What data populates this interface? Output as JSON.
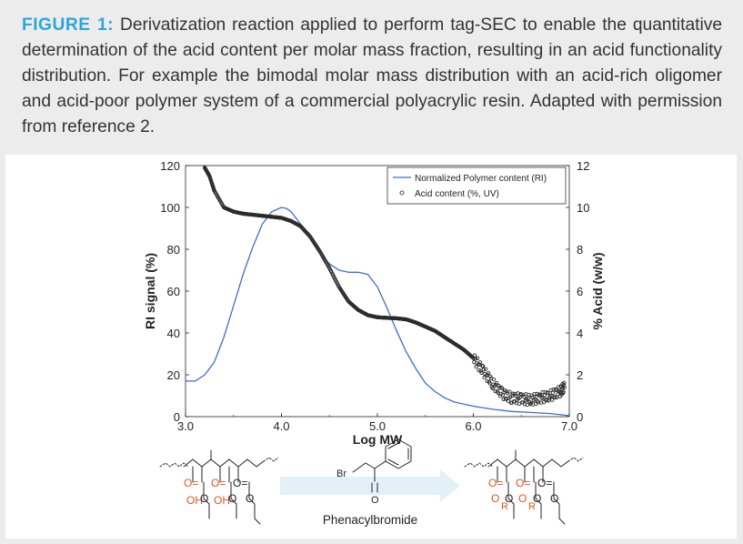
{
  "caption": {
    "label": "FIGURE 1:",
    "text": "Derivatization reaction applied to perform tag-SEC to enable the quantitative determination of the acid content per molar mass fraction, resulting in an acid functionality distribution. For example the bimodal molar mass distribution with an acid-rich oligomer and acid-poor polymer system of a commercial polyacrylic resin. Adapted with permission from reference 2."
  },
  "chart_data": {
    "type": "line",
    "xlabel": "Log MW",
    "ylabel": "RI signal (%)",
    "y2label": "% Acid (w/w)",
    "xlim": [
      3.0,
      7.0
    ],
    "ylim": [
      0,
      120
    ],
    "y2lim": [
      0,
      12
    ],
    "x_ticks": [
      "3.0",
      "4.0",
      "5.0",
      "6.0",
      "7.0"
    ],
    "y_ticks": [
      "0",
      "20",
      "40",
      "60",
      "80",
      "100",
      "120"
    ],
    "y2_ticks": [
      "0",
      "2",
      "4",
      "6",
      "8",
      "10",
      "12"
    ],
    "legend": [
      "Normalized Polymer content (RI)",
      "Acid content (%, UV)"
    ],
    "legend_position": "top-right",
    "series": [
      {
        "name": "Normalized Polymer content (RI)",
        "axis": "left",
        "style": "line",
        "color": "#3d6dc9",
        "x": [
          3.0,
          3.1,
          3.2,
          3.3,
          3.4,
          3.5,
          3.6,
          3.7,
          3.8,
          3.9,
          4.0,
          4.05,
          4.1,
          4.2,
          4.3,
          4.4,
          4.5,
          4.6,
          4.7,
          4.8,
          4.9,
          5.0,
          5.1,
          5.2,
          5.3,
          5.4,
          5.5,
          5.6,
          5.7,
          5.8,
          5.9,
          6.0,
          6.2,
          6.4,
          6.6,
          6.8,
          7.0
        ],
        "y": [
          17,
          17,
          20,
          26,
          38,
          53,
          68,
          81,
          92,
          98,
          100,
          99.5,
          98,
          92,
          85,
          78,
          73,
          70,
          69,
          69,
          68,
          62,
          52,
          41,
          31,
          23,
          16,
          12,
          9,
          7,
          6,
          5,
          3.5,
          2.5,
          2,
          1.5,
          0.5
        ]
      },
      {
        "name": "Acid content (%, UV)",
        "axis": "right",
        "style": "markers",
        "color": "#2b2b2b",
        "x": [
          3.2,
          3.25,
          3.3,
          3.4,
          3.5,
          3.6,
          3.7,
          3.8,
          3.9,
          4.0,
          4.1,
          4.2,
          4.3,
          4.4,
          4.5,
          4.6,
          4.7,
          4.8,
          4.9,
          5.0,
          5.1,
          5.2,
          5.3,
          5.4,
          5.5,
          5.6,
          5.7,
          5.8,
          5.9,
          6.0,
          6.1,
          6.2,
          6.3,
          6.4,
          6.5,
          6.6,
          6.7,
          6.8,
          6.9,
          6.95
        ],
        "y": [
          11.9,
          11.5,
          10.8,
          10.0,
          9.8,
          9.7,
          9.65,
          9.6,
          9.55,
          9.5,
          9.35,
          9.1,
          8.6,
          7.9,
          7.1,
          6.2,
          5.5,
          5.1,
          4.85,
          4.75,
          4.72,
          4.7,
          4.65,
          4.5,
          4.3,
          4.1,
          3.8,
          3.5,
          3.2,
          2.8,
          2.2,
          1.6,
          1.1,
          0.9,
          0.85,
          0.8,
          0.9,
          1.0,
          1.2,
          1.4
        ]
      }
    ]
  },
  "scheme": {
    "left_labels": [
      "OH",
      "OH"
    ],
    "reagent_atom": "Br",
    "carbonyl_o": "O",
    "reagent_name": "Phenacylbromide",
    "r_labels": [
      "R",
      "R"
    ]
  }
}
